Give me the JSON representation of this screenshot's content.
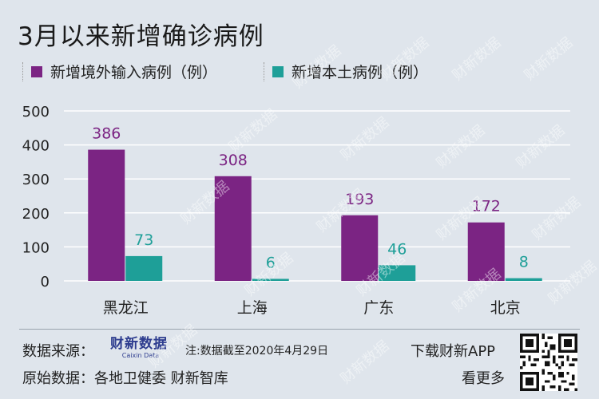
{
  "title": "3月以来新增确诊病例",
  "legend": [
    {
      "label": "新增境外输入病例（例）",
      "color": "#7b2483"
    },
    {
      "label": "新增本土病例（例）",
      "color": "#1e9f98"
    }
  ],
  "chart_data": {
    "type": "bar",
    "title": "3月以来新增确诊病例",
    "categories": [
      "黑龙江",
      "上海",
      "广东",
      "北京"
    ],
    "series": [
      {
        "name": "新增境外输入病例（例）",
        "values": [
          386,
          308,
          193,
          172
        ],
        "color": "#7b2483"
      },
      {
        "name": "新增本土病例（例）",
        "values": [
          73,
          6,
          46,
          8
        ],
        "color": "#1e9f98"
      }
    ],
    "yticks": [
      0,
      100,
      200,
      300,
      400,
      500
    ],
    "ylim": [
      0,
      500
    ],
    "grid": true,
    "legend_position": "top-left",
    "xlabel": "",
    "ylabel": ""
  },
  "footer": {
    "source_label": "数据来源：",
    "logo_cn": "财新数据",
    "logo_en": "Caixin Data",
    "note": "注:数据截至2020年4月29日",
    "original_label": "原始数据：各地卫健委  财新智库",
    "download": "下载财新APP",
    "more": "看更多"
  },
  "watermark_text": "财新数据"
}
